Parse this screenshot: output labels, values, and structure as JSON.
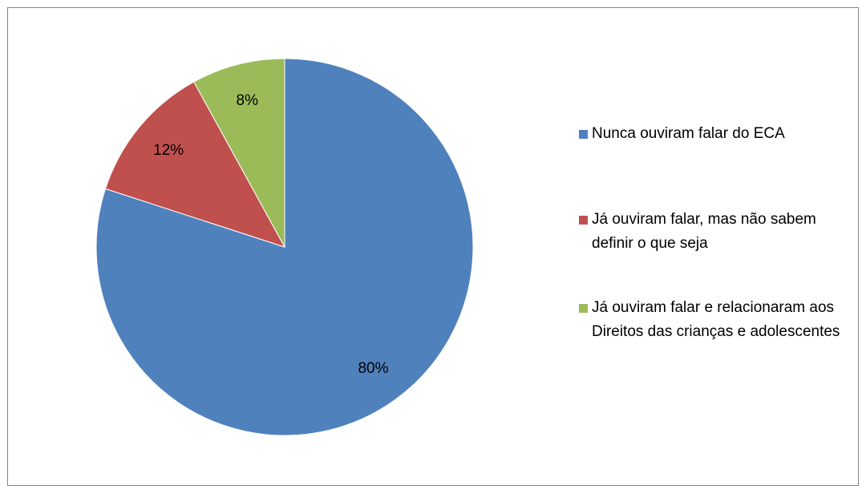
{
  "chart_data": {
    "type": "pie",
    "categories": [
      "Nunca ouviram falar do ECA",
      "Já ouviram falar, mas não sabem definir o que seja",
      "Já ouviram falar e relacionaram aos Direitos das crianças e adolescentes"
    ],
    "values": [
      80,
      12,
      8
    ],
    "value_labels": [
      "80%",
      "12%",
      "8%"
    ],
    "colors": [
      "#4f81bd",
      "#c0504d",
      "#9bbb59"
    ],
    "legend": "right"
  }
}
